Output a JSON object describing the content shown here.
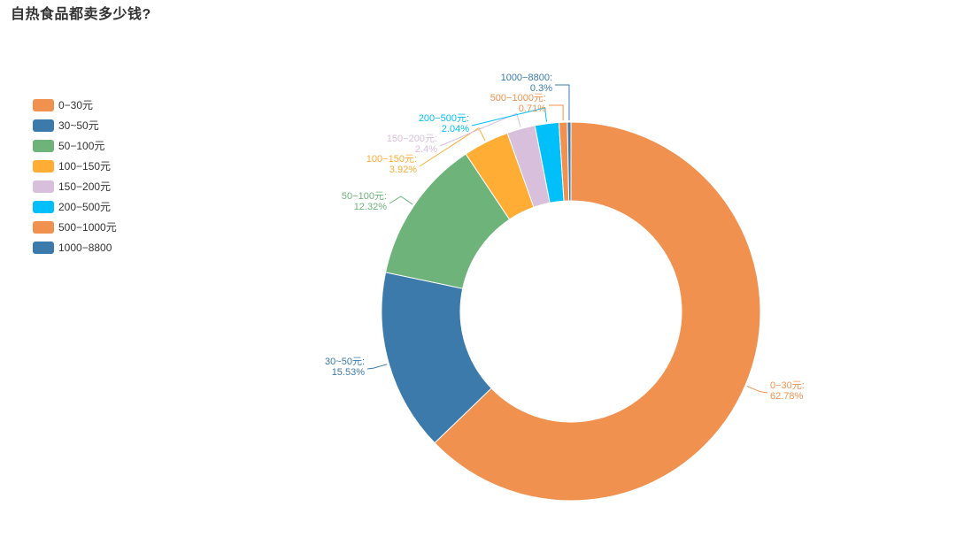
{
  "chart_data": {
    "type": "pie",
    "title": "自热食品都卖多少钱?",
    "legend_position": "left",
    "labels": [
      "0−30元",
      "30~50元",
      "50−100元",
      "100−150元",
      "150−200元",
      "200−500元",
      "500−1000元",
      "1000−8800"
    ],
    "values": [
      62.78,
      15.53,
      12.32,
      3.92,
      2.4,
      2.04,
      0.71,
      0.3
    ],
    "value_labels": [
      "62.78%",
      "15.53%",
      "12.32%",
      "3.92%",
      "2.4%",
      "2.04%",
      "0.71%",
      "0.3%"
    ],
    "slice_labels": [
      "0−30元:",
      "30~50元:",
      "50−100元:",
      "100−150元:",
      "150−200元:",
      "200−500元:",
      "500−1000元:",
      "1000−8800:"
    ],
    "colors": [
      "#f0914f",
      "#3b7aab",
      "#6db37a",
      "#ffad35",
      "#d8bfdb",
      "#00bff9",
      "#f0914f",
      "#3b7aab"
    ]
  }
}
